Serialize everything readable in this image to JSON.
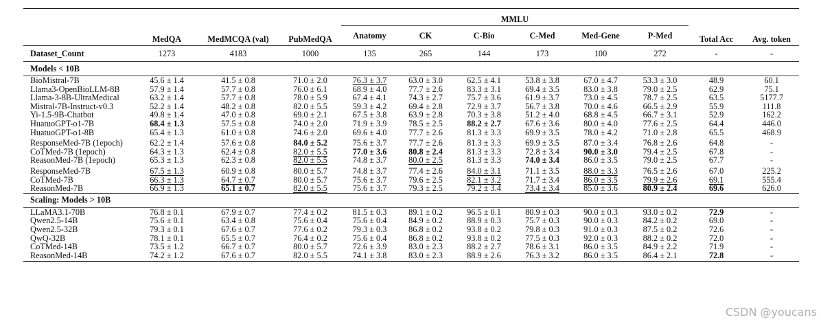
{
  "header": {
    "medqa": "MedQA",
    "medmcqa": "MedMCQA (val)",
    "pubmedqa": "PubMedQA",
    "mmlu": "MMLU",
    "mmlu_sub": [
      "Anatomy",
      "CK",
      "C-Bio",
      "C-Med",
      "Med-Gene",
      "P-Med"
    ],
    "total": "Total Acc",
    "avg": "Avg. token"
  },
  "dataset_count": {
    "label": "Dataset_Count",
    "values": [
      "1273",
      "4183",
      "1000",
      "135",
      "265",
      "144",
      "173",
      "100",
      "272",
      "-",
      "-"
    ]
  },
  "sections": [
    {
      "title": "Models < 10B",
      "groups": [
        [
          {
            "name": "BioMistral-7B",
            "cells": [
              {
                "v": "45.6 ± 1.4"
              },
              {
                "v": "41.5 ± 0.8"
              },
              {
                "v": "71.0 ± 2.0"
              },
              {
                "v": "76.3 ± 3.7",
                "u": true
              },
              {
                "v": "63.0 ± 3.0"
              },
              {
                "v": "62.5 ± 4.1"
              },
              {
                "v": "53.8 ± 3.8"
              },
              {
                "v": "67.0 ± 4.7"
              },
              {
                "v": "53.3 ± 3.0"
              },
              {
                "v": "48.9"
              },
              {
                "v": "60.1"
              }
            ]
          },
          {
            "name": "Llama3-OpenBioLLM-8B",
            "cells": [
              {
                "v": "57.9 ± 1.4"
              },
              {
                "v": "57.7 ± 0.8"
              },
              {
                "v": "76.0 ± 6.1"
              },
              {
                "v": "68.9 ± 4.0"
              },
              {
                "v": "77.7 ± 2.6"
              },
              {
                "v": "83.3 ± 3.1"
              },
              {
                "v": "69.4 ± 3.5"
              },
              {
                "v": "83.0 ± 3.8"
              },
              {
                "v": "79.0 ± 2.5"
              },
              {
                "v": "62.9"
              },
              {
                "v": "75.1"
              }
            ]
          },
          {
            "name": "Llama-3-8B-UltraMedical",
            "cells": [
              {
                "v": "63.2 ± 1.4"
              },
              {
                "v": "57.7 ± 0.8"
              },
              {
                "v": "78.0 ± 5.9"
              },
              {
                "v": "67.4 ± 4.1"
              },
              {
                "v": "74.3 ± 2.7"
              },
              {
                "v": "75.7 ± 3.6"
              },
              {
                "v": "61.9 ± 3.7"
              },
              {
                "v": "73.0 ± 4.5"
              },
              {
                "v": "78.7 ± 2.5"
              },
              {
                "v": "63.5"
              },
              {
                "v": "5177.7"
              }
            ]
          },
          {
            "name": "Mistral-7B-Instruct-v0.3",
            "cells": [
              {
                "v": "52.2 ± 1.4"
              },
              {
                "v": "48.2 ± 0.8"
              },
              {
                "v": "82.0 ± 5.5"
              },
              {
                "v": "59.3 ± 4.2"
              },
              {
                "v": "69.4 ± 2.8"
              },
              {
                "v": "72.9 ± 3.7"
              },
              {
                "v": "56.7 ± 3.8"
              },
              {
                "v": "70.0 ± 4.6"
              },
              {
                "v": "66.5 ± 2.9"
              },
              {
                "v": "55.9"
              },
              {
                "v": "111.8"
              }
            ]
          },
          {
            "name": "Yi-1.5-9B-Chatbot",
            "cells": [
              {
                "v": "49.8 ± 1.4"
              },
              {
                "v": "47.0 ± 0.8"
              },
              {
                "v": "69.0 ± 2.1"
              },
              {
                "v": "67.5 ± 3.8"
              },
              {
                "v": "63.9 ± 2.8"
              },
              {
                "v": "70.3 ± 3.8"
              },
              {
                "v": "51.2 ± 4.0"
              },
              {
                "v": "68.8 ± 4.5"
              },
              {
                "v": "66.7 ± 3.1"
              },
              {
                "v": "52.9"
              },
              {
                "v": "162.2"
              }
            ]
          },
          {
            "name": "HuatuoGPT-o1-7B",
            "cells": [
              {
                "v": "68.4 ± 1.3",
                "b": true
              },
              {
                "v": "57.5 ± 0.8"
              },
              {
                "v": "74.0 ± 2.0"
              },
              {
                "v": "71.9 ± 3.9"
              },
              {
                "v": "78.5 ± 2.5"
              },
              {
                "v": "88.2 ± 2.7",
                "b": true
              },
              {
                "v": "67.6 ± 3.6"
              },
              {
                "v": "80.0 ± 4.0"
              },
              {
                "v": "77.6 ± 2.5"
              },
              {
                "v": "64.4"
              },
              {
                "v": "446.0"
              }
            ]
          },
          {
            "name": "HuatuoGPT-o1-8B",
            "cells": [
              {
                "v": "65.4 ± 1.3"
              },
              {
                "v": "61.0 ± 0.8"
              },
              {
                "v": "74.6 ± 2.0"
              },
              {
                "v": "69.6 ± 4.0"
              },
              {
                "v": "77.7 ± 2.6"
              },
              {
                "v": "81.3 ± 3.3"
              },
              {
                "v": "69.9 ± 3.5"
              },
              {
                "v": "78.0 ± 4.2"
              },
              {
                "v": "71.0 ± 2.8"
              },
              {
                "v": "65.5"
              },
              {
                "v": "468.9"
              }
            ]
          }
        ],
        [
          {
            "name": "ResponseMed-7B (1epoch)",
            "cells": [
              {
                "v": "62.2 ± 1.4"
              },
              {
                "v": "57.6 ± 0.8"
              },
              {
                "v": "84.0 ± 5.2",
                "b": true
              },
              {
                "v": "75.6 ± 3.7"
              },
              {
                "v": "77.7 ± 2.6"
              },
              {
                "v": "81.3 ± 3.3"
              },
              {
                "v": "69.9 ± 3.5"
              },
              {
                "v": "87.0 ± 3.4"
              },
              {
                "v": "76.8 ± 2.6"
              },
              {
                "v": "64.8"
              },
              {
                "v": "-"
              }
            ]
          },
          {
            "name": "CoTMed-7B (1epoch)",
            "cells": [
              {
                "v": "64.3 ± 1.3"
              },
              {
                "v": "62.4 ± 0.8"
              },
              {
                "v": "82.0 ± 5.5",
                "u": true
              },
              {
                "v": "77.0 ± 3.6",
                "b": true
              },
              {
                "v": "80.8 ± 2.4",
                "b": true
              },
              {
                "v": "81.3 ± 3.3"
              },
              {
                "v": "72.8 ± 3.4"
              },
              {
                "v": "90.0 ± 3.0",
                "b": true
              },
              {
                "v": "79.4 ± 2.5"
              },
              {
                "v": "67.8"
              },
              {
                "v": "-"
              }
            ]
          },
          {
            "name": "ReasonMed-7B (1epoch)",
            "cells": [
              {
                "v": "65.3 ± 1.3"
              },
              {
                "v": "62.3 ± 0.8"
              },
              {
                "v": "82.0 ± 5.5",
                "u": true
              },
              {
                "v": "74.8 ± 3.7"
              },
              {
                "v": "80.0 ± 2.5",
                "u": true
              },
              {
                "v": "81.3 ± 3.3"
              },
              {
                "v": "74.0 ± 3.4",
                "b": true
              },
              {
                "v": "86.0 ± 3.5"
              },
              {
                "v": "79.0 ± 2.5"
              },
              {
                "v": "67.7"
              },
              {
                "v": "-"
              }
            ]
          }
        ],
        [
          {
            "name": "ResponseMed-7B",
            "cells": [
              {
                "v": "67.5 ± 1.3",
                "u": true
              },
              {
                "v": "60.9 ± 0.8"
              },
              {
                "v": "80.0 ± 5.7"
              },
              {
                "v": "74.8 ± 3.7"
              },
              {
                "v": "77.4 ± 2.6"
              },
              {
                "v": "84.0 ± 3.1",
                "u": true
              },
              {
                "v": "71.1 ± 3.5"
              },
              {
                "v": "88.0 ± 3.3",
                "u": true
              },
              {
                "v": "76.5 ± 2.6"
              },
              {
                "v": "67.0"
              },
              {
                "v": "225.2"
              }
            ]
          },
          {
            "name": "CoTMed-7B",
            "cells": [
              {
                "v": "66.3 ± 1.3",
                "u": true
              },
              {
                "v": "64.7 ± 0.7",
                "u": true
              },
              {
                "v": "80.0 ± 5.7"
              },
              {
                "v": "75.6 ± 3.7"
              },
              {
                "v": "79.6 ± 2.5"
              },
              {
                "v": "82.1 ± 3.2",
                "u": true
              },
              {
                "v": "71.7 ± 3.4"
              },
              {
                "v": "86.0 ± 3.5",
                "u": true
              },
              {
                "v": "79.9 ± 2.6",
                "u": true
              },
              {
                "v": "69.1",
                "u": true
              },
              {
                "v": "555.4"
              }
            ]
          },
          {
            "name": "ReasonMed-7B",
            "cells": [
              {
                "v": "66.9 ± 1.3"
              },
              {
                "v": "65.1 ± 0.7",
                "b": true
              },
              {
                "v": "82.0 ± 5.5",
                "u": true
              },
              {
                "v": "75.6 ± 3.7"
              },
              {
                "v": "79.3 ± 2.5"
              },
              {
                "v": "79.2 ± 3.4"
              },
              {
                "v": "73.4 ± 3.4",
                "u": true
              },
              {
                "v": "85.0 ± 3.6"
              },
              {
                "v": "80.9 ± 2.4",
                "b": true
              },
              {
                "v": "69.6",
                "b": true
              },
              {
                "v": "626.0"
              }
            ]
          }
        ]
      ]
    },
    {
      "title": "Scaling: Models > 10B",
      "groups": [
        [
          {
            "name": "LLaMA3.1-70B",
            "cells": [
              {
                "v": "76.8 ± 0.1"
              },
              {
                "v": "67.9 ± 0.7"
              },
              {
                "v": "77.4 ± 0.2"
              },
              {
                "v": "81.5 ± 0.3"
              },
              {
                "v": "89.1 ± 0.2"
              },
              {
                "v": "96.5 ± 0.1"
              },
              {
                "v": "80.9 ± 0.3"
              },
              {
                "v": "90.0 ± 0.3"
              },
              {
                "v": "93.0 ± 0.2"
              },
              {
                "v": "72.9",
                "b": true
              },
              {
                "v": "-"
              }
            ]
          },
          {
            "name": "Qwen2.5-14B",
            "cells": [
              {
                "v": "75.6 ± 0.1"
              },
              {
                "v": "63.4 ± 0.8"
              },
              {
                "v": "75.6 ± 0.4"
              },
              {
                "v": "75.6 ± 0.4"
              },
              {
                "v": "84.9 ± 0.2"
              },
              {
                "v": "88.9 ± 0.3"
              },
              {
                "v": "75.7 ± 0.3"
              },
              {
                "v": "90.0 ± 0.3"
              },
              {
                "v": "84.2 ± 0.2"
              },
              {
                "v": "69.0"
              },
              {
                "v": "-"
              }
            ]
          },
          {
            "name": "Qwen2.5-32B",
            "cells": [
              {
                "v": "79.3 ± 0.1"
              },
              {
                "v": "67.6 ± 0.7"
              },
              {
                "v": "77.6 ± 0.2"
              },
              {
                "v": "79.3 ± 0.3"
              },
              {
                "v": "86.8 ± 0.2"
              },
              {
                "v": "93.8 ± 0.2"
              },
              {
                "v": "79.8 ± 0.3"
              },
              {
                "v": "91.0 ± 0.3"
              },
              {
                "v": "87.5 ± 0.2"
              },
              {
                "v": "72.6"
              },
              {
                "v": "-"
              }
            ]
          },
          {
            "name": "QwQ-32B",
            "cells": [
              {
                "v": "78.1 ± 0.1"
              },
              {
                "v": "65.5 ± 0.7"
              },
              {
                "v": "76.4 ± 0.2"
              },
              {
                "v": "75.6 ± 0.4"
              },
              {
                "v": "86.8 ± 0.2"
              },
              {
                "v": "93.8 ± 0.2"
              },
              {
                "v": "77.5 ± 0.3"
              },
              {
                "v": "92.0 ± 0.3"
              },
              {
                "v": "88.2 ± 0.2"
              },
              {
                "v": "72.0"
              },
              {
                "v": "-"
              }
            ]
          },
          {
            "name": "CoTMed-14B",
            "cells": [
              {
                "v": "73.5 ± 1.2"
              },
              {
                "v": "66.7 ± 0.7"
              },
              {
                "v": "80.0 ± 5.7"
              },
              {
                "v": "72.6 ± 3.9"
              },
              {
                "v": "83.0 ± 2.3"
              },
              {
                "v": "88.2 ± 2.7"
              },
              {
                "v": "78.6 ± 3.1"
              },
              {
                "v": "86.0 ± 3.5"
              },
              {
                "v": "84.9 ± 2.2"
              },
              {
                "v": "71.9"
              },
              {
                "v": "-"
              }
            ]
          },
          {
            "name": "ReasonMed-14B",
            "cells": [
              {
                "v": "74.2 ± 1.2"
              },
              {
                "v": "67.6 ± 0.7"
              },
              {
                "v": "82.0 ± 5.5"
              },
              {
                "v": "74.1 ± 3.8"
              },
              {
                "v": "83.0 ± 2.3"
              },
              {
                "v": "88.9 ± 2.6"
              },
              {
                "v": "76.3 ± 3.2"
              },
              {
                "v": "86.0 ± 3.5"
              },
              {
                "v": "86.4 ± 2.1"
              },
              {
                "v": "72.8",
                "b": true
              },
              {
                "v": "-"
              }
            ]
          }
        ]
      ]
    }
  ],
  "watermark": "CSDN @youcans"
}
